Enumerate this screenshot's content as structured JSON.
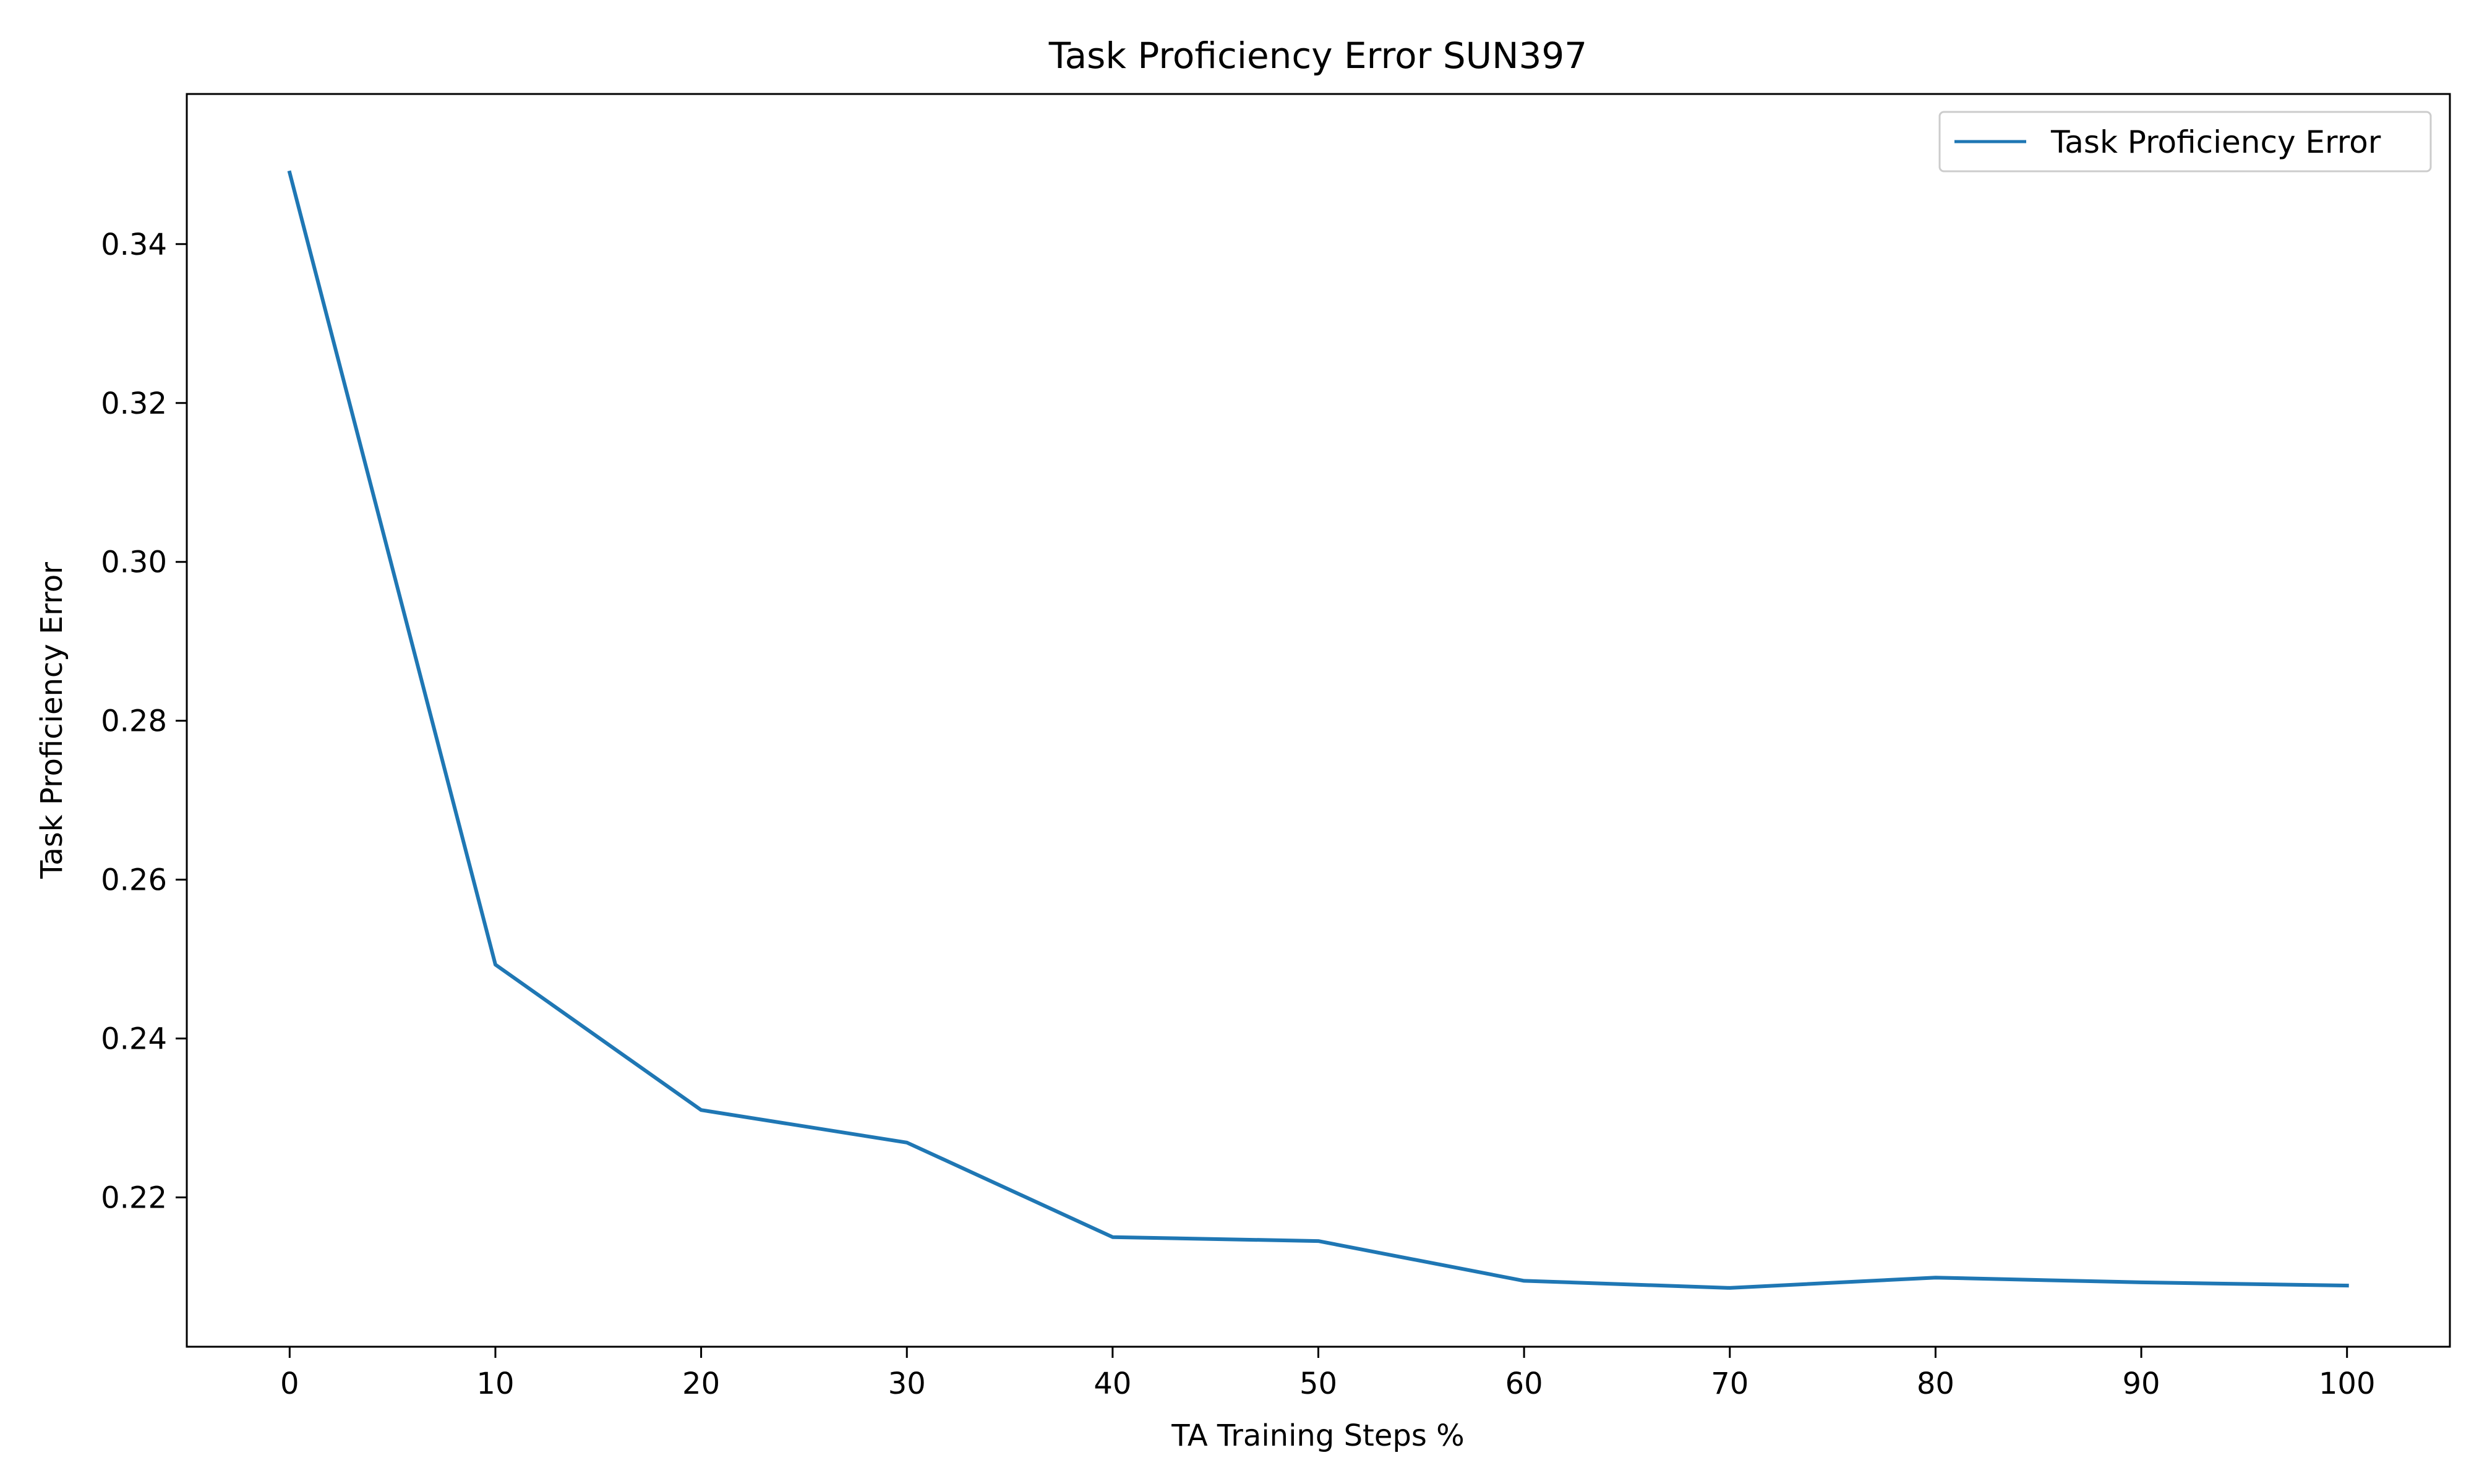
{
  "chart_data": {
    "type": "line",
    "title": "Task Proficiency Error SUN397",
    "xlabel": "TA Training Steps %",
    "ylabel": "Task Proficiency Error",
    "x": [
      0,
      10,
      20,
      30,
      40,
      50,
      60,
      70,
      80,
      90,
      100
    ],
    "series": [
      {
        "name": "Task Proficiency Error",
        "color": "#1f77b4",
        "values": [
          0.349,
          0.2493,
          0.231,
          0.2269,
          0.215,
          0.2145,
          0.2095,
          0.2086,
          0.2099,
          0.2093,
          0.2089
        ]
      }
    ],
    "xlim": [
      -5,
      105
    ],
    "ylim": [
      0.2012,
      0.3589
    ],
    "xticks": [
      0,
      10,
      20,
      30,
      40,
      50,
      60,
      70,
      80,
      90,
      100
    ],
    "yticks": [
      0.22,
      0.24,
      0.26,
      0.28,
      0.3,
      0.32,
      0.34
    ],
    "ytick_labels": [
      "0.22",
      "0.24",
      "0.26",
      "0.28",
      "0.30",
      "0.32",
      "0.34"
    ],
    "grid": false,
    "legend_position": "top-right"
  }
}
